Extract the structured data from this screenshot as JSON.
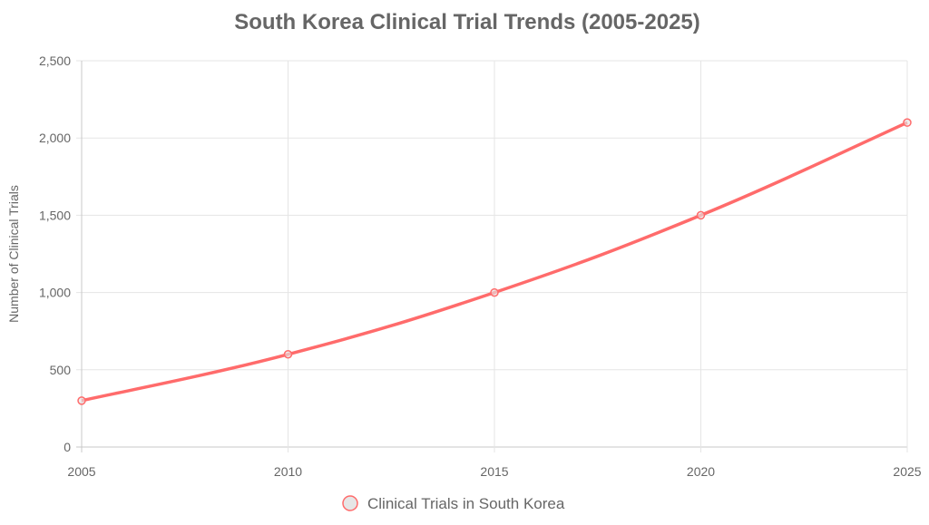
{
  "chart_data": {
    "type": "line",
    "title": "South Korea Clinical Trial Trends (2005-2025)",
    "xlabel": "",
    "ylabel": "Number of Clinical Trials",
    "x": [
      2005,
      2010,
      2015,
      2020,
      2025
    ],
    "x_tick_labels": [
      "2005",
      "2010",
      "2015",
      "2020",
      "2025"
    ],
    "y_tick_labels": [
      "0",
      "500",
      "1,000",
      "1,500",
      "2,000",
      "2,500"
    ],
    "ylim": [
      0,
      2500
    ],
    "xlim": [
      2005,
      2025
    ],
    "grid": true,
    "legend_position": "bottom",
    "series": [
      {
        "name": "Clinical Trials in South Korea",
        "values": [
          300,
          600,
          1000,
          1500,
          2100
        ],
        "color": "#ff6b6b",
        "marker_fill": "#e6e6e6"
      }
    ]
  }
}
